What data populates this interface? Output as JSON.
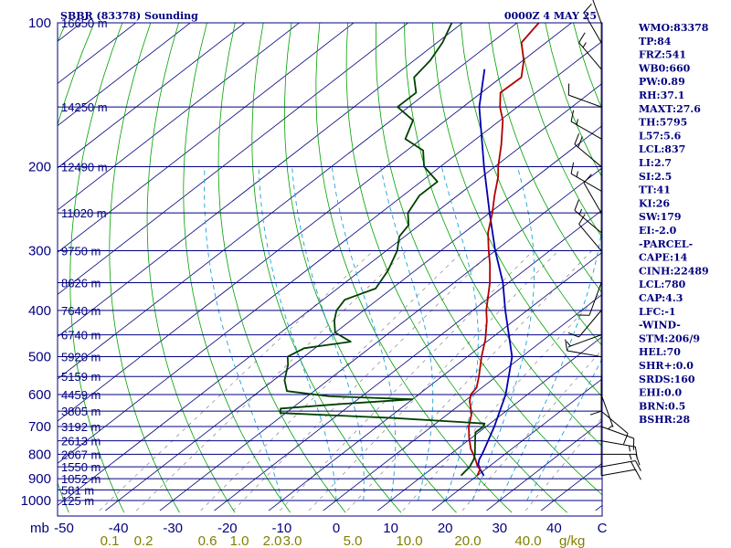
{
  "header": {
    "title": "SBBR (83378) Sounding",
    "datetime": "0000Z  4 MAY 25"
  },
  "chart_data": {
    "type": "skew-t log-p",
    "pressure_axis": {
      "unit": "mb",
      "ticks": [
        100,
        200,
        300,
        400,
        500,
        600,
        700,
        800,
        900,
        1000
      ],
      "range": [
        1000,
        100
      ],
      "scale": "log"
    },
    "temperature_axis": {
      "unit": "C",
      "ticks": [
        -50,
        -40,
        -30,
        -20,
        -10,
        0,
        10,
        20,
        30,
        40
      ],
      "range": [
        -50,
        50
      ]
    },
    "mixing_ratio_axis": {
      "unit": "g/kg",
      "ticks": [
        "0.1",
        "0.2",
        "0.6",
        "1.0",
        "2.0",
        "3.0",
        "5.0",
        "10.0",
        "20.0",
        "40.0"
      ]
    },
    "height_labels": [
      {
        "p": 100,
        "label": "16650 m"
      },
      {
        "p": 150,
        "label": "14250 m"
      },
      {
        "p": 200,
        "label": "12490 m"
      },
      {
        "p": 250,
        "label": "11020 m"
      },
      {
        "p": 300,
        "label": "9750 m"
      },
      {
        "p": 350,
        "label": "8626 m"
      },
      {
        "p": 400,
        "label": "7640 m"
      },
      {
        "p": 450,
        "label": "6740 m"
      },
      {
        "p": 500,
        "label": "5920 m"
      },
      {
        "p": 550,
        "label": "5159 m"
      },
      {
        "p": 600,
        "label": "4459 m"
      },
      {
        "p": 650,
        "label": "3805 m"
      },
      {
        "p": 700,
        "label": "3192 m"
      },
      {
        "p": 750,
        "label": "2613 m"
      },
      {
        "p": 800,
        "label": "2067 m"
      },
      {
        "p": 850,
        "label": "1550 m"
      },
      {
        "p": 900,
        "label": "1052 m"
      },
      {
        "p": 950,
        "label": "581 m"
      },
      {
        "p": 1000,
        "label": "125 m"
      }
    ],
    "temperature_profile": [
      {
        "p": 887,
        "t": 20.0
      },
      {
        "p": 860,
        "t": 19.0
      },
      {
        "p": 850,
        "t": 18.0
      },
      {
        "p": 820,
        "t": 15.8
      },
      {
        "p": 800,
        "t": 14.2
      },
      {
        "p": 780,
        "t": 12.5
      },
      {
        "p": 740,
        "t": 9.6
      },
      {
        "p": 700,
        "t": 6.8
      },
      {
        "p": 660,
        "t": 4.4
      },
      {
        "p": 650,
        "t": 3.6
      },
      {
        "p": 620,
        "t": 1.0
      },
      {
        "p": 600,
        "t": -0.4
      },
      {
        "p": 580,
        "t": -1.0
      },
      {
        "p": 550,
        "t": -3.2
      },
      {
        "p": 500,
        "t": -7.4
      },
      {
        "p": 460,
        "t": -10.8
      },
      {
        "p": 420,
        "t": -15.0
      },
      {
        "p": 400,
        "t": -17.5
      },
      {
        "p": 350,
        "t": -23.4
      },
      {
        "p": 320,
        "t": -27.8
      },
      {
        "p": 300,
        "t": -31.2
      },
      {
        "p": 275,
        "t": -35.6
      },
      {
        "p": 250,
        "t": -39.5
      },
      {
        "p": 230,
        "t": -43.2
      },
      {
        "p": 210,
        "t": -47.0
      },
      {
        "p": 200,
        "t": -49.4
      },
      {
        "p": 180,
        "t": -54.0
      },
      {
        "p": 160,
        "t": -59.5
      },
      {
        "p": 150,
        "t": -63.2
      },
      {
        "p": 140,
        "t": -66.5
      },
      {
        "p": 130,
        "t": -66.3
      },
      {
        "p": 120,
        "t": -69.8
      },
      {
        "p": 110,
        "t": -74.5
      },
      {
        "p": 100,
        "t": -76.0
      }
    ],
    "dewpoint_profile": [
      {
        "p": 887,
        "td": 17.0
      },
      {
        "p": 850,
        "td": 16.5
      },
      {
        "p": 820,
        "td": 15.5
      },
      {
        "p": 800,
        "td": 14.5
      },
      {
        "p": 760,
        "td": 12.0
      },
      {
        "p": 720,
        "td": 9.4
      },
      {
        "p": 700,
        "td": 9.5
      },
      {
        "p": 690,
        "td": 9.0
      },
      {
        "p": 672,
        "td": -9.0
      },
      {
        "p": 656,
        "td": -31.0
      },
      {
        "p": 642,
        "td": -32.0
      },
      {
        "p": 628,
        "td": -22.0
      },
      {
        "p": 614,
        "td": -10.0
      },
      {
        "p": 605,
        "td": -26.0
      },
      {
        "p": 590,
        "td": -35.0
      },
      {
        "p": 560,
        "td": -38.0
      },
      {
        "p": 520,
        "td": -41.0
      },
      {
        "p": 500,
        "td": -43.0
      },
      {
        "p": 480,
        "td": -42.0
      },
      {
        "p": 465,
        "td": -35.0
      },
      {
        "p": 445,
        "td": -40.0
      },
      {
        "p": 420,
        "td": -43.0
      },
      {
        "p": 400,
        "td": -45.0
      },
      {
        "p": 380,
        "td": -46.0
      },
      {
        "p": 360,
        "td": -43.0
      },
      {
        "p": 330,
        "td": -45.0
      },
      {
        "p": 300,
        "td": -48.0
      },
      {
        "p": 280,
        "td": -51.0
      },
      {
        "p": 265,
        "td": -52.0
      },
      {
        "p": 250,
        "td": -55.0
      },
      {
        "p": 230,
        "td": -57.0
      },
      {
        "p": 215,
        "td": -57.0
      },
      {
        "p": 200,
        "td": -63.0
      },
      {
        "p": 185,
        "td": -67.0
      },
      {
        "p": 175,
        "td": -73.0
      },
      {
        "p": 160,
        "td": -76.0
      },
      {
        "p": 150,
        "td": -82.0
      },
      {
        "p": 140,
        "td": -82.0
      },
      {
        "p": 130,
        "td": -86.0
      },
      {
        "p": 120,
        "td": -87.0
      },
      {
        "p": 110,
        "td": -89.0
      },
      {
        "p": 100,
        "td": -92.0
      }
    ],
    "parcel_path": [
      {
        "p": 887,
        "t": 21.2
      },
      {
        "p": 860,
        "t": 19.0
      },
      {
        "p": 840,
        "t": 17.5
      },
      {
        "p": 820,
        "t": 16.5
      },
      {
        "p": 800,
        "t": 15.8
      },
      {
        "p": 780,
        "t": 15.0
      },
      {
        "p": 700,
        "t": 11.5
      },
      {
        "p": 600,
        "t": 6.0
      },
      {
        "p": 500,
        "t": -1.8
      },
      {
        "p": 400,
        "t": -14.0
      },
      {
        "p": 350,
        "t": -21.0
      },
      {
        "p": 300,
        "t": -30.0
      },
      {
        "p": 250,
        "t": -40.0
      },
      {
        "p": 200,
        "t": -52.0
      },
      {
        "p": 150,
        "t": -67.0
      },
      {
        "p": 125,
        "t": -75.0
      }
    ],
    "wind_profile": [
      {
        "p": 100,
        "dir": 340,
        "spd": 10
      },
      {
        "p": 110,
        "dir": 330,
        "spd": 10
      },
      {
        "p": 125,
        "dir": 320,
        "spd": 15
      },
      {
        "p": 150,
        "dir": 290,
        "spd": 10
      },
      {
        "p": 175,
        "dir": 300,
        "spd": 15
      },
      {
        "p": 200,
        "dir": 310,
        "spd": 20
      },
      {
        "p": 225,
        "dir": 300,
        "spd": 15
      },
      {
        "p": 250,
        "dir": 330,
        "spd": 10
      },
      {
        "p": 275,
        "dir": 310,
        "spd": 15
      },
      {
        "p": 300,
        "dir": 320,
        "spd": 10
      },
      {
        "p": 350,
        "dir": 200,
        "spd": 10
      },
      {
        "p": 400,
        "dir": 220,
        "spd": 10
      },
      {
        "p": 450,
        "dir": 250,
        "spd": 5
      },
      {
        "p": 500,
        "dir": 280,
        "spd": 10
      },
      {
        "p": 550,
        "dir": 180,
        "spd": 10
      },
      {
        "p": 600,
        "dir": 160,
        "spd": 5
      },
      {
        "p": 650,
        "dir": 130,
        "spd": 10
      },
      {
        "p": 700,
        "dir": 110,
        "spd": 10
      },
      {
        "p": 750,
        "dir": 100,
        "spd": 15
      },
      {
        "p": 800,
        "dir": 90,
        "spd": 15
      },
      {
        "p": 850,
        "dir": 80,
        "spd": 20
      },
      {
        "p": 887,
        "dir": 80,
        "spd": 10
      }
    ],
    "indices": [
      "WMO:83378",
      "TP:84",
      "FRZ:541",
      "WB0:660",
      "PW:0.89",
      "RH:37.1",
      "MAXT:27.6",
      "TH:5795",
      "L57:5.6",
      "LCL:837",
      "LI:2.7",
      "SI:2.5",
      "TT:41",
      "KI:26",
      "SW:179",
      "EI:-2.0",
      "-PARCEL-",
      "CAPE:14",
      "CINH:22489",
      "LCL:780",
      "CAP:4.3",
      "LFC:-1",
      "-WIND-",
      "STM:206/9",
      "HEL:70",
      "SHR+:0.0",
      "SRDS:160",
      "EHI:0.0",
      "BRN:0.5",
      "BSHR:28"
    ],
    "colors": {
      "isobar": "#00007f",
      "isotherm": "#00007f",
      "dry_adiabat": "#00a000",
      "moist_adiabat": "#1fa0d8",
      "mixing_ratio": "#000000",
      "temperature": "#b00000",
      "dewpoint": "#004000",
      "parcel": "#0000b0",
      "wind": "#000000"
    }
  }
}
